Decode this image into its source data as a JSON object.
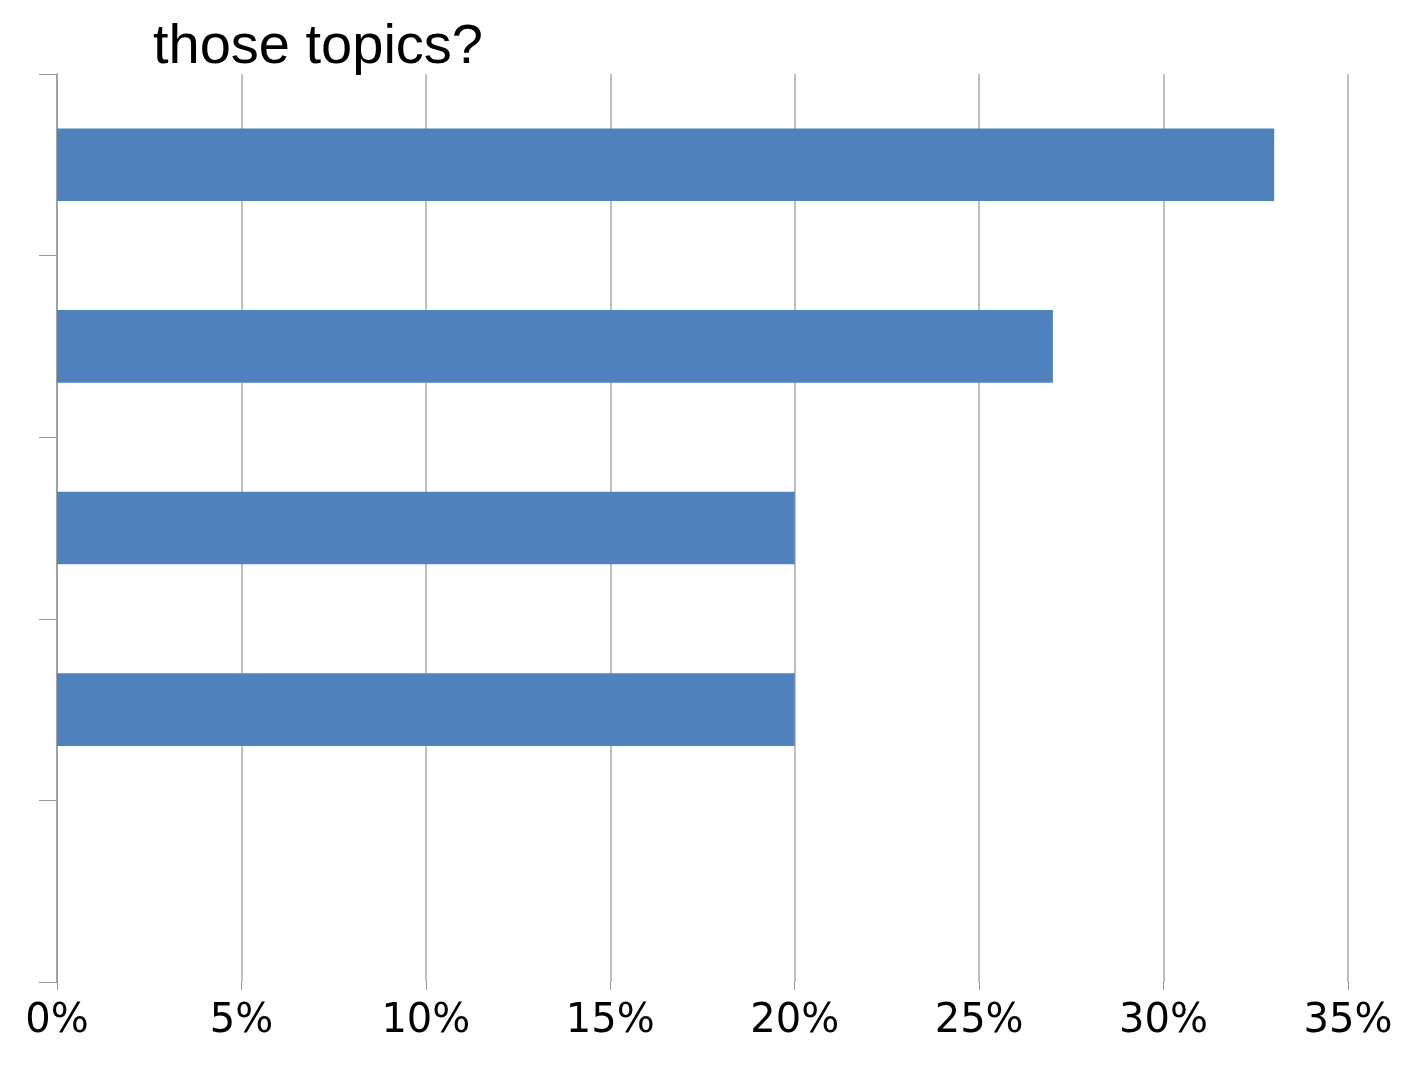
{
  "chart_data": {
    "type": "bar",
    "orientation": "horizontal",
    "title": "those topics?",
    "categories": [
      null,
      null,
      null,
      null,
      null
    ],
    "values": [
      33,
      27,
      20,
      20,
      0
    ],
    "color": "#4f81bd",
    "xlim": [
      0,
      35
    ],
    "xticks": [
      {
        "value": 0,
        "label": "0%"
      },
      {
        "value": 5,
        "label": "5%"
      },
      {
        "value": 10,
        "label": "10%"
      },
      {
        "value": 15,
        "label": "15%"
      },
      {
        "value": 20,
        "label": "20%"
      },
      {
        "value": 25,
        "label": "25%"
      },
      {
        "value": 30,
        "label": "30%"
      },
      {
        "value": 35,
        "label": "35%"
      }
    ],
    "grid": "x"
  }
}
